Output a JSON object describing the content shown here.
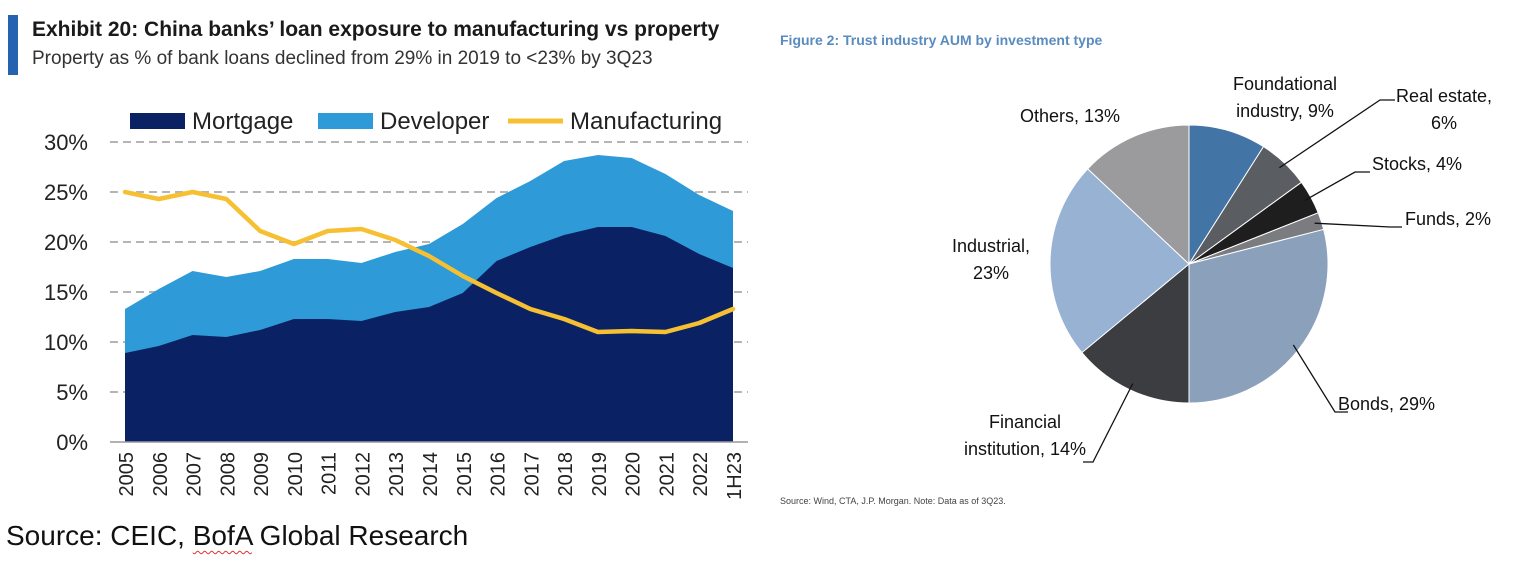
{
  "colors": {
    "accent": "#2563b0",
    "mortgage": "#0a2263",
    "developer": "#2e9bd8",
    "manufacturing": "#f6c032",
    "right_title": "#5a8bbf"
  },
  "left_panel": {
    "title": "Exhibit 20: China banks’ loan exposure  to manufacturing vs property",
    "subtitle": "Property as % of bank loans declined from 29% in 2019 to <23% by 3Q23",
    "source_prefix": "Source: CEIC, ",
    "source_underlined": "BofA",
    "source_suffix": " Global Research"
  },
  "right_panel": {
    "title": "Figure 2: Trust industry AUM by investment type",
    "source": "Source: Wind, CTA, J.P. Morgan. Note: Data as of 3Q23."
  },
  "chart_data": [
    {
      "type": "area",
      "title": "Exhibit 20: China banks’ loan exposure  to manufacturing vs property",
      "subtitle": "Property as % of bank loans declined from 29% in 2019 to <23% by 3Q23",
      "categories": [
        "2005",
        "2006",
        "2007",
        "2008",
        "2009",
        "2010",
        "2011",
        "2012",
        "2013",
        "2014",
        "2015",
        "2016",
        "2017",
        "2018",
        "2019",
        "2020",
        "2021",
        "2022",
        "1H23"
      ],
      "y_ticks": [
        "0%",
        "5%",
        "10%",
        "15%",
        "20%",
        "25%",
        "30%"
      ],
      "ylim": [
        0,
        30
      ],
      "stacked": true,
      "grid": true,
      "legend_position": "top",
      "series": [
        {
          "name": "Mortgage",
          "kind": "area",
          "values": [
            8.9,
            9.6,
            10.7,
            10.5,
            11.2,
            12.3,
            12.3,
            12.1,
            13.0,
            13.5,
            14.9,
            18.1,
            19.5,
            20.7,
            21.5,
            21.5,
            20.6,
            18.8,
            17.4
          ]
        },
        {
          "name": "Developer",
          "kind": "area",
          "values": [
            4.4,
            5.7,
            6.4,
            6.0,
            5.9,
            6.0,
            6.0,
            5.8,
            6.0,
            6.3,
            6.9,
            6.3,
            6.6,
            7.4,
            7.2,
            6.9,
            6.2,
            5.9,
            5.7
          ]
        },
        {
          "name": "Manufacturing",
          "kind": "line",
          "values": [
            25.0,
            24.3,
            25.0,
            24.3,
            21.1,
            19.8,
            21.1,
            21.3,
            20.2,
            18.6,
            16.6,
            14.9,
            13.3,
            12.3,
            11.0,
            11.1,
            11.0,
            11.9,
            13.3
          ]
        }
      ]
    },
    {
      "type": "pie",
      "title": "Figure 2: Trust industry AUM by investment type",
      "slices": [
        {
          "label": "Foundational industry",
          "value": 9,
          "label_lines": [
            "Foundational",
            "industry, 9%"
          ],
          "color": "#4274a6"
        },
        {
          "label": "Real estate",
          "value": 6,
          "label_lines": [
            "Real estate,",
            "6%"
          ],
          "color": "#5a5d62"
        },
        {
          "label": "Stocks",
          "value": 4,
          "label_lines": [
            "Stocks, 4%"
          ],
          "color": "#1e1e1e"
        },
        {
          "label": "Funds",
          "value": 2,
          "label_lines": [
            "Funds, 2%"
          ],
          "color": "#7a7c80"
        },
        {
          "label": "Bonds",
          "value": 29,
          "label_lines": [
            "Bonds, 29%"
          ],
          "color": "#8aa0bb"
        },
        {
          "label": "Financial institution",
          "value": 14,
          "label_lines": [
            "Financial",
            "institution, 14%"
          ],
          "color": "#3c3d40"
        },
        {
          "label": "Industrial",
          "value": 23,
          "label_lines": [
            "Industrial,",
            "23%"
          ],
          "color": "#98b2d3"
        },
        {
          "label": "Others",
          "value": 13,
          "label_lines": [
            "Others, 13%"
          ],
          "color": "#9b9b9e"
        }
      ]
    }
  ]
}
